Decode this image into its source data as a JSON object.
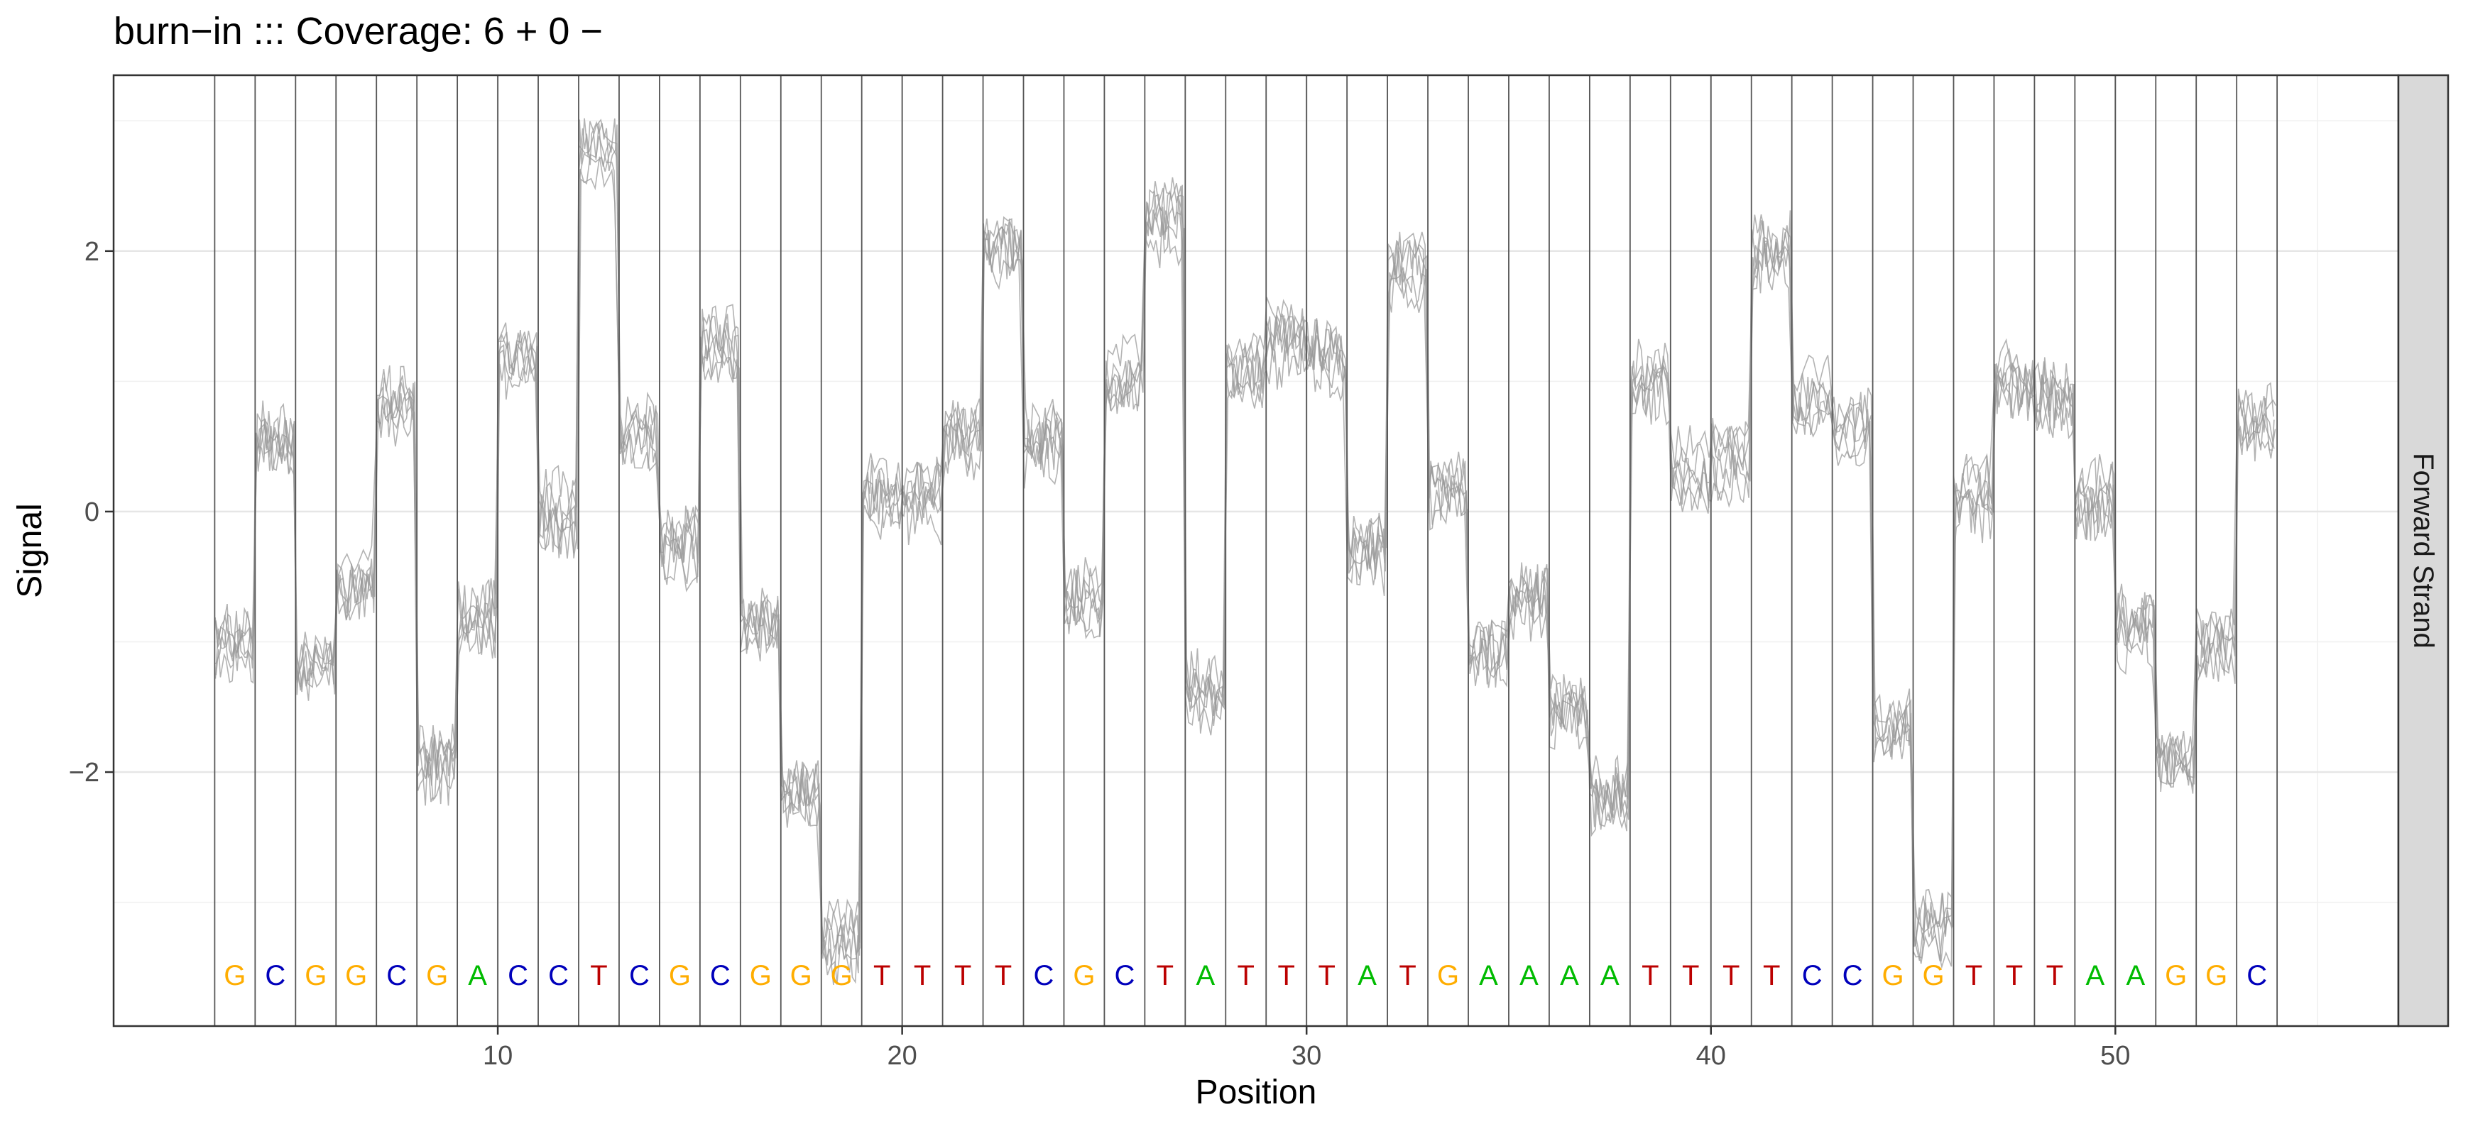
{
  "chart_data": {
    "type": "line",
    "title": "burn−in  ::: Coverage: 6 + 0 −",
    "xlabel": "Position",
    "ylabel": "Signal",
    "facet_label": "Forward Strand",
    "xlim": [
      0.5,
      57
    ],
    "ylim": [
      -3.95,
      3.35
    ],
    "x_ticks": [
      10,
      20,
      30,
      40,
      50
    ],
    "x_tick_labels": [
      "10",
      "20",
      "30",
      "40",
      "50"
    ],
    "y_ticks": [
      -2,
      0,
      2
    ],
    "y_tick_labels": [
      "−2",
      "0",
      "2"
    ],
    "grid": true,
    "base_colors": {
      "A": "#00bb00",
      "C": "#0000bb",
      "G": "#ffad00",
      "T": "#bb0000"
    },
    "signal_line_color": "#9a9a9a",
    "sequence_start": 3,
    "sequence": [
      "G",
      "C",
      "G",
      "G",
      "C",
      "G",
      "A",
      "C",
      "C",
      "T",
      "C",
      "G",
      "C",
      "G",
      "G",
      "G",
      "T",
      "T",
      "T",
      "T",
      "C",
      "G",
      "C",
      "T",
      "A",
      "T",
      "T",
      "T",
      "A",
      "T",
      "G",
      "A",
      "A",
      "A",
      "A",
      "T",
      "T",
      "T",
      "T",
      "C",
      "C",
      "G",
      "G",
      "T",
      "T",
      "T",
      "A",
      "A",
      "G",
      "G",
      "C"
    ],
    "base_levels": [
      -1.0,
      0.6,
      -1.1,
      -0.5,
      0.8,
      -1.9,
      -0.8,
      1.2,
      0.0,
      2.7,
      0.6,
      -0.3,
      1.3,
      -0.8,
      -2.2,
      -3.3,
      0.1,
      0.1,
      0.6,
      1.9,
      0.5,
      -0.7,
      1.0,
      2.2,
      -1.4,
      1.0,
      1.3,
      1.2,
      -0.3,
      1.8,
      0.2,
      -1.1,
      -0.7,
      -1.5,
      -2.2,
      1.0,
      0.3,
      0.4,
      2.0,
      0.9,
      0.6,
      -1.6,
      -3.2,
      0.1,
      1.0,
      0.9,
      0.1,
      -0.9,
      -1.8,
      -1.1,
      0.7
    ],
    "series_count": 6
  }
}
